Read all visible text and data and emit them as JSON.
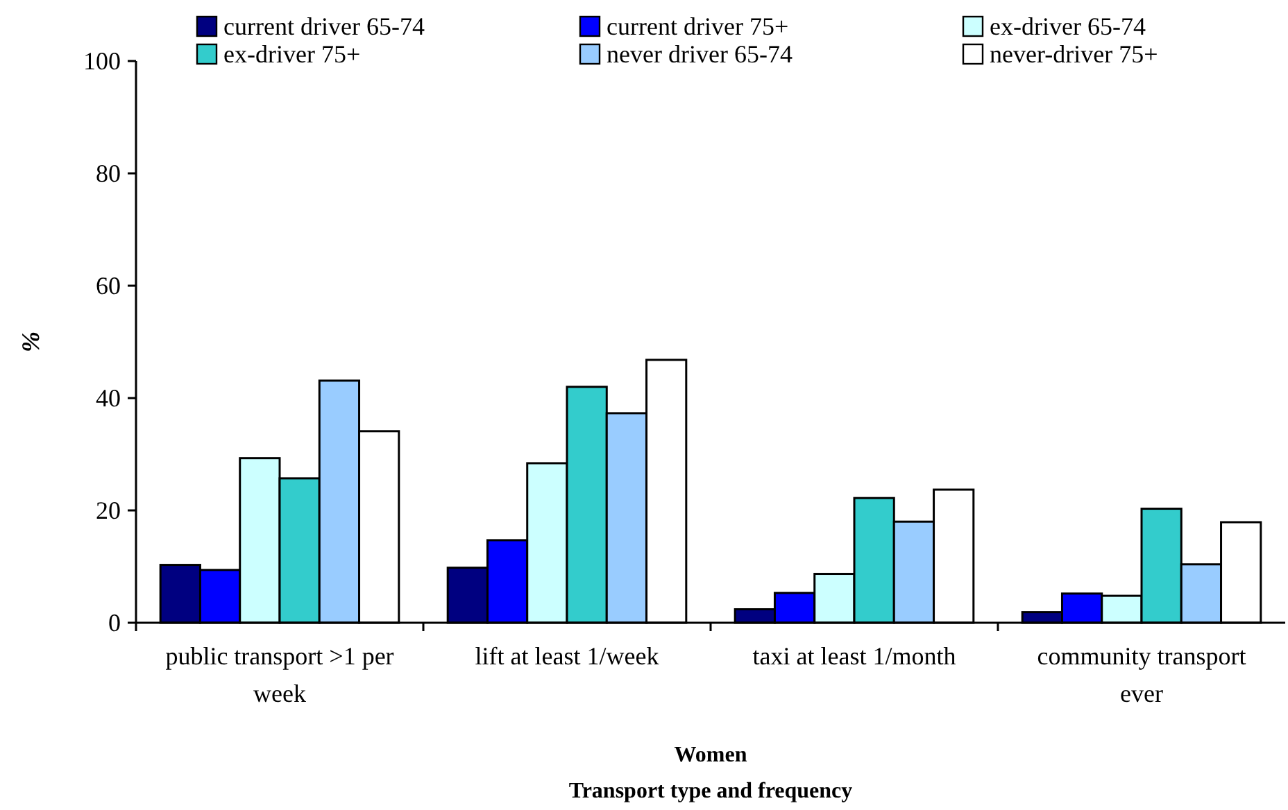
{
  "chart_data": {
    "type": "bar",
    "xlabel": "Women\nTransport type and frequency",
    "ylabel": "%",
    "categories": [
      "public transport >1 per week",
      "lift at least 1/week",
      "taxi at least 1/month",
      "community transport ever"
    ],
    "series": [
      {
        "name": "current driver 65-74",
        "color": "#000080",
        "values": [
          10.3,
          9.8,
          2.4,
          1.9
        ]
      },
      {
        "name": "current driver 75+",
        "color": "#0000ff",
        "values": [
          9.4,
          14.7,
          5.3,
          5.2
        ]
      },
      {
        "name": "ex-driver 65-74",
        "color": "#ccffff",
        "values": [
          29.3,
          28.4,
          8.7,
          4.8
        ]
      },
      {
        "name": "ex-driver 75+",
        "color": "#33cccc",
        "values": [
          25.7,
          42.0,
          22.2,
          20.3
        ]
      },
      {
        "name": "never driver 65-74",
        "color": "#99ccff",
        "values": [
          43.1,
          37.3,
          18.0,
          10.4
        ]
      },
      {
        "name": "never-driver 75+",
        "color": "#ffffff",
        "values": [
          34.1,
          46.8,
          23.7,
          17.9
        ]
      }
    ],
    "ylim": [
      0,
      100
    ],
    "yticks": [
      0,
      20,
      40,
      60,
      80,
      100
    ],
    "grid": false,
    "legend": "top"
  }
}
